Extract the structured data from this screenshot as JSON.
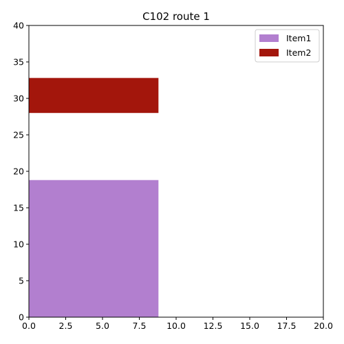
{
  "chart_data": {
    "type": "bar",
    "title": "C102 route 1",
    "xlabel": "",
    "ylabel": "",
    "xlim": [
      0,
      20
    ],
    "ylim": [
      0,
      40
    ],
    "xticks": [
      0,
      2.5,
      5,
      7.5,
      10,
      12.5,
      15,
      17.5,
      20
    ],
    "xtick_labels": [
      "0.0",
      "2.5",
      "5.0",
      "7.5",
      "10.0",
      "12.5",
      "15.0",
      "17.5",
      "20.0"
    ],
    "yticks": [
      0,
      5,
      10,
      15,
      20,
      25,
      30,
      35,
      40
    ],
    "ytick_labels": [
      "0",
      "5",
      "10",
      "15",
      "20",
      "25",
      "30",
      "35",
      "40"
    ],
    "grid": false,
    "legend_position": "top-right",
    "series": [
      {
        "name": "Item1",
        "color": "#b27fcf",
        "x0": 0,
        "x1": 8.8,
        "y0": 0,
        "y1": 18.8
      },
      {
        "name": "Item2",
        "color": "#a3160c",
        "x0": 0,
        "x1": 8.8,
        "y0": 28.0,
        "y1": 32.8
      }
    ]
  }
}
